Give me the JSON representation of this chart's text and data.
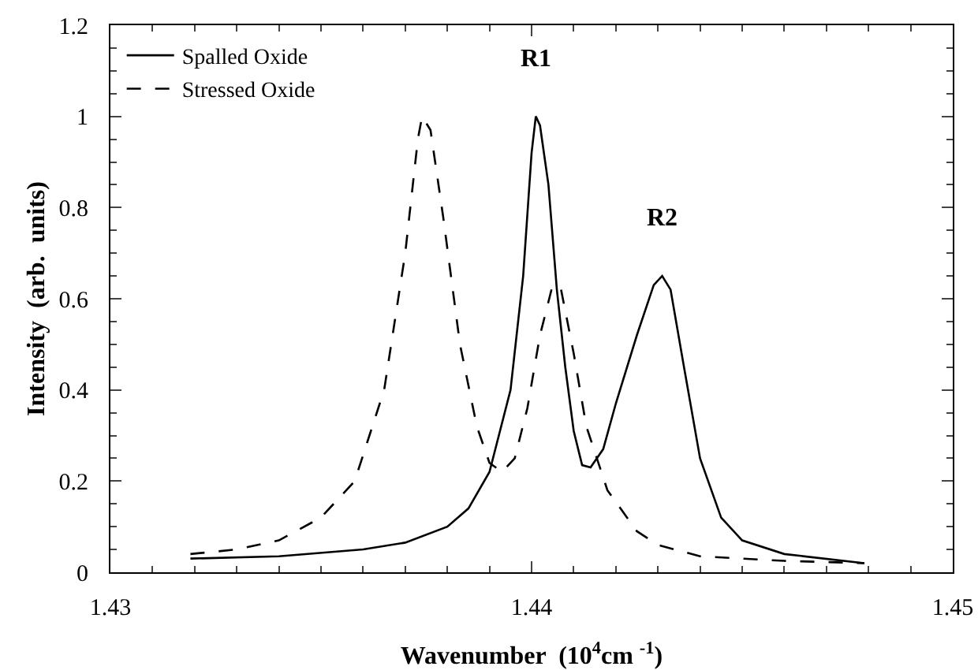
{
  "chart_data": {
    "type": "line",
    "xlabel": "Wavenumber  (10$^{4}$cm $^{-1}$)",
    "ylabel": "Intensity  (arb.  units)",
    "xlim": [
      1.43,
      1.45
    ],
    "xticks": [
      1.43,
      1.44,
      1.45
    ],
    "ylim": [
      0,
      1.2
    ],
    "yticks": [
      0,
      0.2,
      0.4,
      0.6,
      0.8,
      1,
      1.2
    ],
    "grid": false,
    "legend": "top left",
    "marker": "none",
    "annotations": [
      {
        "text": "R1",
        "x": 1.4401,
        "y": 1.0
      },
      {
        "text": "R2",
        "x": 1.4431,
        "y": 0.65
      }
    ],
    "series": [
      {
        "name": "Spalled Oxide",
        "color": "#000000",
        "line_style": "solid",
        "x": [
          1.4319,
          1.434,
          1.436,
          1.437,
          1.438,
          1.4385,
          1.439,
          1.4395,
          1.4398,
          1.44,
          1.4401,
          1.4402,
          1.4404,
          1.4406,
          1.4408,
          1.441,
          1.4412,
          1.4414,
          1.4417,
          1.442,
          1.4425,
          1.4429,
          1.4431,
          1.4433,
          1.4436,
          1.444,
          1.4445,
          1.445,
          1.446,
          1.4479
        ],
        "values": [
          0.03,
          0.035,
          0.05,
          0.065,
          0.1,
          0.14,
          0.22,
          0.4,
          0.65,
          0.92,
          1.0,
          0.98,
          0.85,
          0.62,
          0.45,
          0.31,
          0.235,
          0.23,
          0.27,
          0.37,
          0.52,
          0.63,
          0.65,
          0.62,
          0.46,
          0.25,
          0.12,
          0.07,
          0.04,
          0.02
        ]
      },
      {
        "name": "Stressed Oxide",
        "color": "#000000",
        "line_style": "dashed",
        "x": [
          1.4319,
          1.433,
          1.434,
          1.435,
          1.4358,
          1.4365,
          1.437,
          1.4373,
          1.4374,
          1.4376,
          1.4379,
          1.4383,
          1.4387,
          1.439,
          1.4393,
          1.4396,
          1.4399,
          1.4402,
          1.4405,
          1.4407,
          1.441,
          1.4413,
          1.4418,
          1.4425,
          1.443,
          1.444,
          1.446,
          1.4479
        ],
        "values": [
          0.04,
          0.05,
          0.07,
          0.12,
          0.2,
          0.4,
          0.7,
          0.95,
          1.0,
          0.97,
          0.78,
          0.5,
          0.32,
          0.24,
          0.22,
          0.25,
          0.36,
          0.52,
          0.63,
          0.62,
          0.48,
          0.32,
          0.18,
          0.09,
          0.06,
          0.035,
          0.025,
          0.02
        ]
      }
    ]
  }
}
